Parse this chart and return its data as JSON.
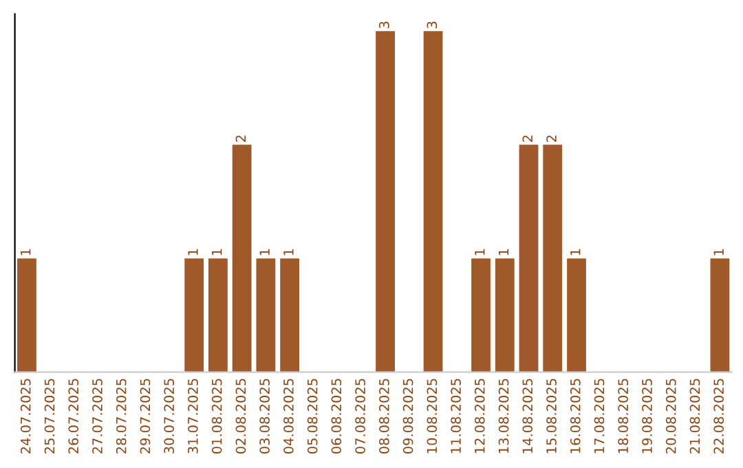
{
  "chart_data": {
    "type": "bar",
    "categories": [
      "24.07.2025",
      "25.07.2025",
      "26.07.2025",
      "27.07.2025",
      "28.07.2025",
      "29.07.2025",
      "30.07.2025",
      "31.07.2025",
      "01.08.2025",
      "02.08.2025",
      "03.08.2025",
      "04.08.2025",
      "05.08.2025",
      "06.08.2025",
      "07.08.2025",
      "08.08.2025",
      "09.08.2025",
      "10.08.2025",
      "11.08.2025",
      "12.08.2025",
      "13.08.2025",
      "14.08.2025",
      "15.08.2025",
      "16.08.2025",
      "17.08.2025",
      "18.08.2025",
      "19.08.2025",
      "20.08.2025",
      "21.08.2025",
      "22.08.2025"
    ],
    "values": [
      1,
      0,
      0,
      0,
      0,
      0,
      0,
      1,
      1,
      2,
      1,
      1,
      0,
      0,
      0,
      3,
      0,
      3,
      0,
      1,
      1,
      2,
      2,
      1,
      0,
      0,
      0,
      0,
      0,
      1
    ],
    "value_labels": [
      "1",
      null,
      null,
      null,
      null,
      null,
      null,
      "1",
      "1",
      "2",
      "1",
      "1",
      null,
      null,
      null,
      "3",
      null,
      "3",
      null,
      "1",
      "1",
      "2",
      "2",
      "1",
      null,
      null,
      null,
      null,
      null,
      "1"
    ],
    "color": "#a0592a",
    "grid": false,
    "legend": false
  }
}
